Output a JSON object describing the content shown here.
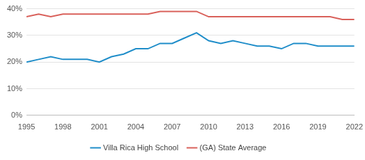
{
  "chart_data": {
    "type": "line",
    "x": [
      1995,
      1996,
      1997,
      1998,
      1999,
      2000,
      2001,
      2002,
      2003,
      2004,
      2005,
      2006,
      2007,
      2008,
      2009,
      2010,
      2011,
      2012,
      2013,
      2014,
      2015,
      2016,
      2017,
      2018,
      2019,
      2020,
      2021,
      2022
    ],
    "series": [
      {
        "name": "Villa Rica High School",
        "color": "#1f8dc9",
        "values": [
          20,
          21,
          22,
          21,
          21,
          21,
          20,
          22,
          23,
          25,
          25,
          27,
          27,
          29,
          31,
          28,
          27,
          28,
          27,
          26,
          26,
          25,
          27,
          27,
          26,
          26,
          26,
          26
        ]
      },
      {
        "name": "(GA) State Average",
        "color": "#d9605a",
        "values": [
          37,
          38,
          37,
          38,
          38,
          38,
          38,
          38,
          38,
          38,
          38,
          39,
          39,
          39,
          39,
          37,
          37,
          37,
          37,
          37,
          37,
          37,
          37,
          37,
          37,
          37,
          36,
          36
        ]
      }
    ],
    "xlim": [
      1995,
      2022
    ],
    "xticks": [
      1995,
      1998,
      2001,
      2004,
      2007,
      2010,
      2013,
      2016,
      2019,
      2022
    ],
    "ylim": [
      0,
      40
    ],
    "yticks": [
      {
        "value": 0,
        "label": "0%"
      },
      {
        "value": 10,
        "label": "10%"
      },
      {
        "value": 20,
        "label": "20%"
      },
      {
        "value": 30,
        "label": "30%"
      },
      {
        "value": 40,
        "label": "40%"
      }
    ],
    "grid": true,
    "legend": "bottom"
  }
}
